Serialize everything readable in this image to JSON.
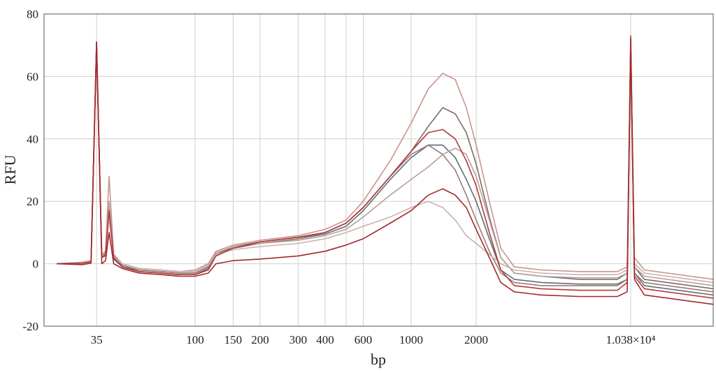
{
  "chart_data": {
    "type": "line",
    "xlabel": "bp",
    "ylabel": "RFU",
    "ylim": [
      -20,
      80
    ],
    "y_ticks": [
      "-20",
      "0",
      "20",
      "40",
      "60",
      "80"
    ],
    "y_tick_values": [
      -20,
      0,
      20,
      40,
      60,
      80
    ],
    "x_scale": "log",
    "xlim": [
      20,
      25000
    ],
    "x_ticks": [
      "35",
      "100",
      "150",
      "200",
      "300",
      "400",
      "600",
      "1000",
      "2000",
      "1.038×10⁴"
    ],
    "x_tick_values": [
      35,
      100,
      150,
      200,
      300,
      400,
      600,
      1000,
      2000,
      10380
    ],
    "x_grid_values": [
      35,
      100,
      150,
      200,
      300,
      400,
      500,
      600,
      1000,
      2000,
      10380
    ],
    "grid": true,
    "legend": "none",
    "series": [
      {
        "color": "#c9948c",
        "points": [
          [
            23,
            0
          ],
          [
            30,
            0.5
          ],
          [
            33,
            1
          ],
          [
            35,
            71
          ],
          [
            37,
            3
          ],
          [
            38.5,
            4
          ],
          [
            40,
            28
          ],
          [
            42,
            3
          ],
          [
            46,
            0
          ],
          [
            55,
            -1.5
          ],
          [
            70,
            -2
          ],
          [
            85,
            -2.5
          ],
          [
            100,
            -2
          ],
          [
            115,
            0
          ],
          [
            125,
            4
          ],
          [
            150,
            6
          ],
          [
            200,
            7.5
          ],
          [
            300,
            9
          ],
          [
            400,
            11
          ],
          [
            500,
            14
          ],
          [
            600,
            20
          ],
          [
            800,
            33
          ],
          [
            1000,
            45
          ],
          [
            1200,
            56
          ],
          [
            1400,
            61
          ],
          [
            1600,
            59
          ],
          [
            1800,
            50
          ],
          [
            2000,
            38
          ],
          [
            2300,
            20
          ],
          [
            2600,
            5
          ],
          [
            3000,
            -1
          ],
          [
            4000,
            -2
          ],
          [
            6000,
            -2.5
          ],
          [
            9000,
            -2.5
          ],
          [
            10000,
            -1
          ],
          [
            10380,
            72
          ],
          [
            10800,
            2
          ],
          [
            12000,
            -2
          ],
          [
            25000,
            -5
          ]
        ]
      },
      {
        "color": "#7e6a68",
        "points": [
          [
            23,
            0
          ],
          [
            30,
            0.3
          ],
          [
            33,
            0.8
          ],
          [
            35,
            70
          ],
          [
            37,
            2
          ],
          [
            38.5,
            3
          ],
          [
            40,
            18
          ],
          [
            42,
            2
          ],
          [
            46,
            -1
          ],
          [
            55,
            -2
          ],
          [
            70,
            -2.5
          ],
          [
            85,
            -3
          ],
          [
            100,
            -3
          ],
          [
            115,
            -1
          ],
          [
            125,
            3
          ],
          [
            150,
            5.5
          ],
          [
            200,
            7
          ],
          [
            300,
            8.5
          ],
          [
            400,
            10
          ],
          [
            500,
            13
          ],
          [
            600,
            18
          ],
          [
            800,
            28
          ],
          [
            1000,
            36
          ],
          [
            1200,
            44
          ],
          [
            1400,
            50
          ],
          [
            1600,
            48
          ],
          [
            1800,
            42
          ],
          [
            2000,
            32
          ],
          [
            2300,
            15
          ],
          [
            2600,
            2
          ],
          [
            3000,
            -3
          ],
          [
            4000,
            -4
          ],
          [
            6000,
            -5
          ],
          [
            9000,
            -5
          ],
          [
            10000,
            -3
          ],
          [
            10380,
            70
          ],
          [
            10800,
            -1
          ],
          [
            12000,
            -5
          ],
          [
            25000,
            -8
          ]
        ]
      },
      {
        "color": "#5f6e78",
        "points": [
          [
            23,
            0
          ],
          [
            30,
            0.2
          ],
          [
            33,
            0.6
          ],
          [
            35,
            70
          ],
          [
            37,
            2
          ],
          [
            38.5,
            2.5
          ],
          [
            40,
            17
          ],
          [
            42,
            1.5
          ],
          [
            46,
            -1
          ],
          [
            55,
            -2.5
          ],
          [
            70,
            -3
          ],
          [
            85,
            -3.5
          ],
          [
            100,
            -3.5
          ],
          [
            115,
            -1.5
          ],
          [
            125,
            2.5
          ],
          [
            150,
            5
          ],
          [
            200,
            6.5
          ],
          [
            300,
            8
          ],
          [
            400,
            9.5
          ],
          [
            500,
            12
          ],
          [
            600,
            17
          ],
          [
            800,
            27
          ],
          [
            1000,
            34
          ],
          [
            1200,
            38
          ],
          [
            1400,
            38
          ],
          [
            1600,
            34
          ],
          [
            1800,
            27
          ],
          [
            2000,
            20
          ],
          [
            2300,
            8
          ],
          [
            2600,
            -2
          ],
          [
            3000,
            -5
          ],
          [
            4000,
            -6
          ],
          [
            6000,
            -6.5
          ],
          [
            9000,
            -6.5
          ],
          [
            10000,
            -5
          ],
          [
            10380,
            69
          ],
          [
            10800,
            -3
          ],
          [
            12000,
            -7
          ],
          [
            25000,
            -10
          ]
        ]
      },
      {
        "color": "#9a7a78",
        "points": [
          [
            23,
            0
          ],
          [
            30,
            0.2
          ],
          [
            33,
            0.7
          ],
          [
            35,
            70
          ],
          [
            37,
            2
          ],
          [
            38.5,
            3
          ],
          [
            40,
            16
          ],
          [
            42,
            2
          ],
          [
            46,
            -0.5
          ],
          [
            55,
            -2
          ],
          [
            70,
            -2.5
          ],
          [
            85,
            -3
          ],
          [
            100,
            -3
          ],
          [
            115,
            -1
          ],
          [
            125,
            3
          ],
          [
            150,
            5
          ],
          [
            200,
            6.5
          ],
          [
            300,
            8
          ],
          [
            400,
            10
          ],
          [
            500,
            13
          ],
          [
            600,
            18
          ],
          [
            800,
            28
          ],
          [
            1000,
            35
          ],
          [
            1200,
            38
          ],
          [
            1400,
            35
          ],
          [
            1600,
            30
          ],
          [
            1800,
            22
          ],
          [
            2000,
            14
          ],
          [
            2300,
            4
          ],
          [
            2600,
            -3
          ],
          [
            3000,
            -6
          ],
          [
            4000,
            -7
          ],
          [
            6000,
            -7
          ],
          [
            9000,
            -7
          ],
          [
            10000,
            -5
          ],
          [
            10380,
            69
          ],
          [
            10800,
            -3
          ],
          [
            12000,
            -6
          ],
          [
            25000,
            -9
          ]
        ]
      },
      {
        "color": "#b5a09e",
        "points": [
          [
            23,
            0
          ],
          [
            30,
            0.4
          ],
          [
            33,
            0.8
          ],
          [
            35,
            70
          ],
          [
            37,
            2.5
          ],
          [
            38.5,
            3.5
          ],
          [
            40,
            20
          ],
          [
            42,
            2.5
          ],
          [
            46,
            0
          ],
          [
            55,
            -1.5
          ],
          [
            70,
            -2
          ],
          [
            85,
            -2.5
          ],
          [
            100,
            -2.5
          ],
          [
            115,
            -0.5
          ],
          [
            125,
            3.5
          ],
          [
            150,
            5.5
          ],
          [
            200,
            6.5
          ],
          [
            300,
            7.5
          ],
          [
            400,
            9
          ],
          [
            500,
            11
          ],
          [
            600,
            15
          ],
          [
            800,
            22
          ],
          [
            1000,
            27
          ],
          [
            1200,
            31
          ],
          [
            1400,
            35
          ],
          [
            1600,
            37
          ],
          [
            1800,
            35
          ],
          [
            2000,
            28
          ],
          [
            2300,
            14
          ],
          [
            2600,
            2
          ],
          [
            3000,
            -3
          ],
          [
            4000,
            -4
          ],
          [
            6000,
            -4.5
          ],
          [
            9000,
            -4.5
          ],
          [
            10000,
            -3
          ],
          [
            10380,
            70
          ],
          [
            10800,
            -1
          ],
          [
            12000,
            -4
          ],
          [
            25000,
            -7
          ]
        ]
      },
      {
        "color": "#c8b2b0",
        "points": [
          [
            23,
            0
          ],
          [
            30,
            0.3
          ],
          [
            33,
            0.7
          ],
          [
            35,
            70
          ],
          [
            37,
            2
          ],
          [
            38.5,
            3
          ],
          [
            40,
            15
          ],
          [
            42,
            2
          ],
          [
            46,
            0
          ],
          [
            55,
            -1.5
          ],
          [
            70,
            -2
          ],
          [
            85,
            -2.5
          ],
          [
            100,
            -2.5
          ],
          [
            115,
            -0.5
          ],
          [
            125,
            3
          ],
          [
            150,
            4.5
          ],
          [
            200,
            5.5
          ],
          [
            300,
            6.5
          ],
          [
            400,
            8
          ],
          [
            500,
            10
          ],
          [
            600,
            12
          ],
          [
            800,
            15
          ],
          [
            1000,
            18
          ],
          [
            1200,
            20
          ],
          [
            1400,
            18
          ],
          [
            1600,
            14
          ],
          [
            1800,
            9
          ],
          [
            2000,
            6.5
          ],
          [
            2300,
            3
          ],
          [
            2600,
            0
          ],
          [
            3000,
            -2
          ],
          [
            4000,
            -3
          ],
          [
            6000,
            -3.5
          ],
          [
            9000,
            -3.5
          ],
          [
            10000,
            -2
          ],
          [
            10380,
            70
          ],
          [
            10800,
            0
          ],
          [
            12000,
            -3
          ],
          [
            25000,
            -6
          ]
        ]
      },
      {
        "color": "#b23a3a",
        "points": [
          [
            23,
            0
          ],
          [
            30,
            0.2
          ],
          [
            33,
            0.6
          ],
          [
            35,
            71
          ],
          [
            37,
            2
          ],
          [
            38.5,
            3
          ],
          [
            40,
            17
          ],
          [
            42,
            2
          ],
          [
            46,
            -1
          ],
          [
            55,
            -2.5
          ],
          [
            70,
            -3
          ],
          [
            85,
            -3.5
          ],
          [
            100,
            -3.5
          ],
          [
            115,
            -2
          ],
          [
            125,
            2.5
          ],
          [
            150,
            5
          ],
          [
            200,
            7
          ],
          [
            300,
            8.5
          ],
          [
            400,
            10
          ],
          [
            500,
            13
          ],
          [
            600,
            18
          ],
          [
            800,
            28
          ],
          [
            1000,
            36
          ],
          [
            1200,
            42
          ],
          [
            1400,
            43
          ],
          [
            1600,
            40
          ],
          [
            1800,
            33
          ],
          [
            2000,
            25
          ],
          [
            2300,
            10
          ],
          [
            2600,
            -2
          ],
          [
            3000,
            -7
          ],
          [
            4000,
            -8
          ],
          [
            6000,
            -8.5
          ],
          [
            9000,
            -8.5
          ],
          [
            10000,
            -6
          ],
          [
            10380,
            73
          ],
          [
            10800,
            -4
          ],
          [
            12000,
            -8
          ],
          [
            25000,
            -11
          ]
        ]
      },
      {
        "color": "#a3282b",
        "points": [
          [
            23,
            0
          ],
          [
            30,
            -0.3
          ],
          [
            33,
            0.2
          ],
          [
            35,
            71
          ],
          [
            37,
            0
          ],
          [
            38.5,
            1
          ],
          [
            40,
            10
          ],
          [
            42,
            0
          ],
          [
            46,
            -1.5
          ],
          [
            55,
            -3
          ],
          [
            70,
            -3.5
          ],
          [
            85,
            -4
          ],
          [
            100,
            -4
          ],
          [
            115,
            -3
          ],
          [
            125,
            0
          ],
          [
            150,
            1
          ],
          [
            200,
            1.5
          ],
          [
            300,
            2.5
          ],
          [
            400,
            4
          ],
          [
            500,
            6
          ],
          [
            600,
            8
          ],
          [
            800,
            13
          ],
          [
            1000,
            17
          ],
          [
            1200,
            22
          ],
          [
            1400,
            24
          ],
          [
            1600,
            22
          ],
          [
            1800,
            18
          ],
          [
            2000,
            11
          ],
          [
            2300,
            2
          ],
          [
            2600,
            -6
          ],
          [
            3000,
            -9
          ],
          [
            4000,
            -10
          ],
          [
            6000,
            -10.5
          ],
          [
            9000,
            -10.5
          ],
          [
            10000,
            -9
          ],
          [
            10380,
            72
          ],
          [
            10800,
            -5
          ],
          [
            12000,
            -10
          ],
          [
            25000,
            -13
          ]
        ]
      }
    ]
  }
}
